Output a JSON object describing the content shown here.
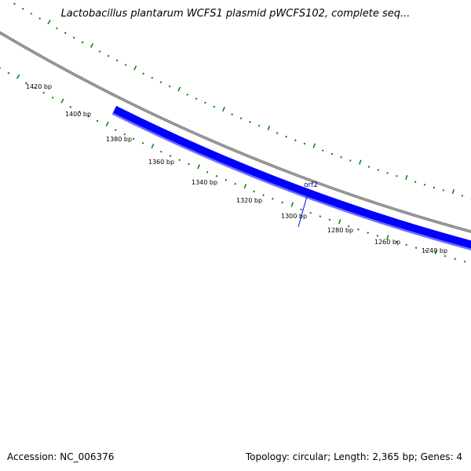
{
  "title": "Lactobacillus plantarum WCFS1 plasmid pWCFS102, complete seq...",
  "accession": "Accession: NC_006376",
  "summary": "Topology: circular; Length: 2,365 bp; Genes: 4",
  "map": {
    "tick_labels": [
      "1420 bp",
      "1400 bp",
      "1380 bp",
      "1360 bp",
      "1340 bp",
      "1320 bp",
      "1300 bp",
      "1280 bp",
      "1260 bp",
      "1240 bp"
    ],
    "features": [
      {
        "name": "orf2",
        "color": "#0000ff",
        "highlight": "#6f6fff"
      }
    ],
    "backbone_color": "#808080",
    "tick_color": "#008000"
  }
}
